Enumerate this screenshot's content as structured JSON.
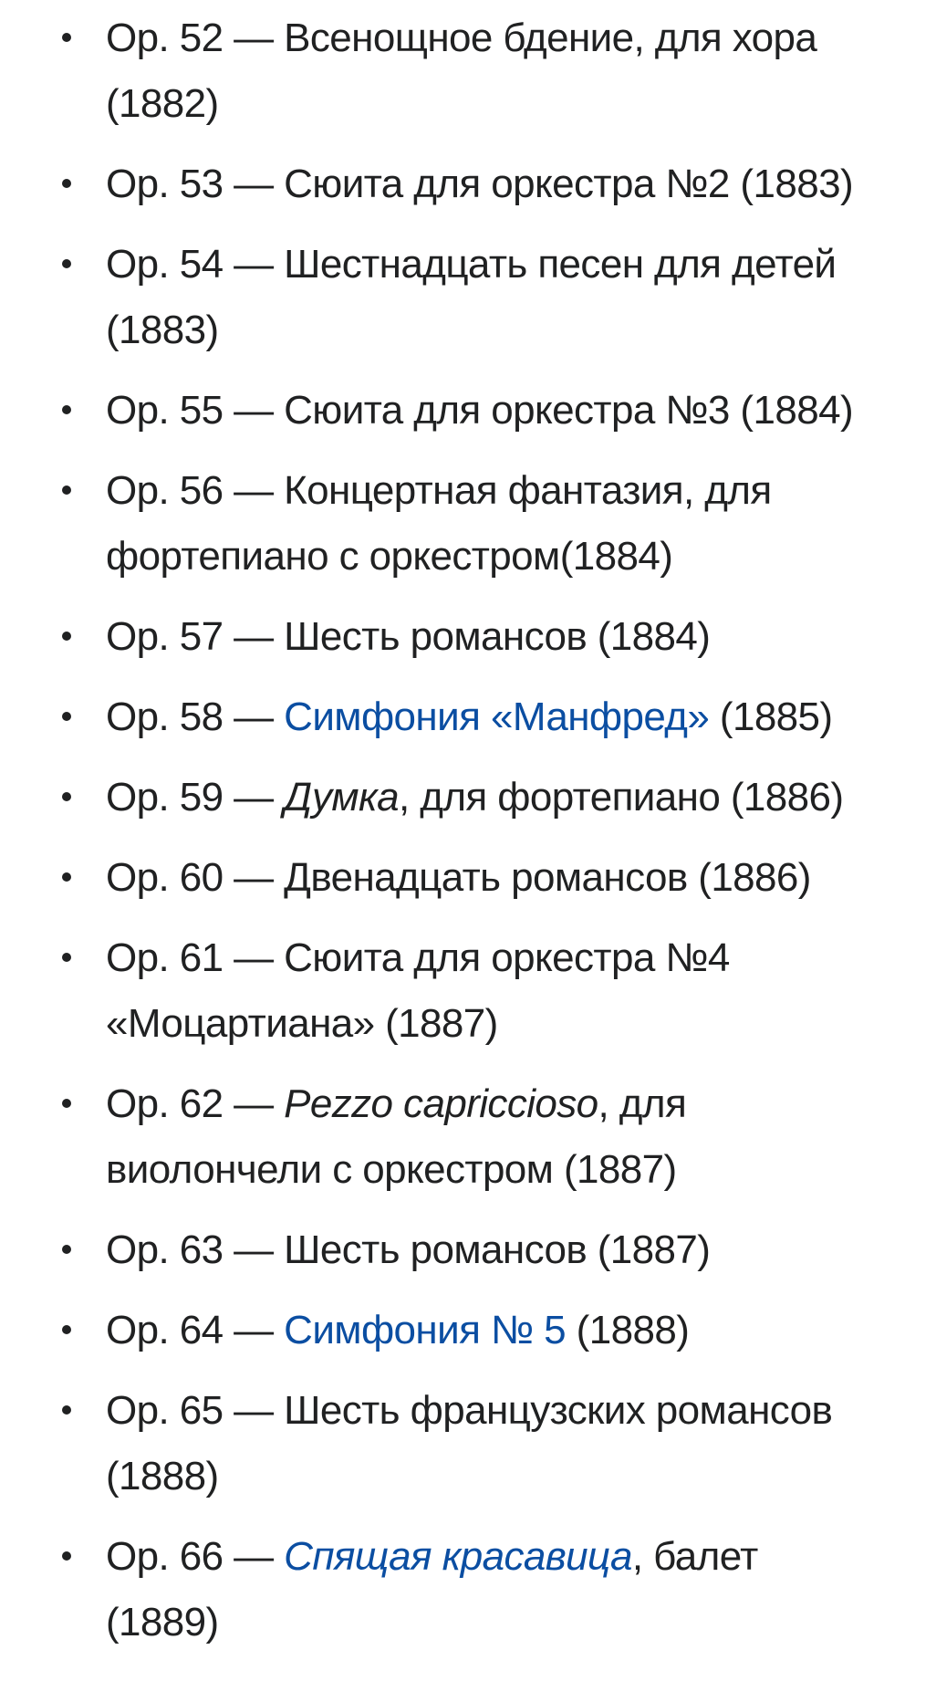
{
  "colors": {
    "text": "#202122",
    "link": "#0b4ea2"
  },
  "items": [
    {
      "lines": [
        [
          {
            "t": "Ор. 52 — Всенощное бдение, для хора"
          }
        ],
        [
          {
            "t": "(1882)"
          }
        ]
      ]
    },
    {
      "lines": [
        [
          {
            "t": "Ор. 53 — Сюита для оркестра №2 (1883)"
          }
        ]
      ]
    },
    {
      "lines": [
        [
          {
            "t": "Ор. 54 — Шестнадцать песен для детей"
          }
        ],
        [
          {
            "t": "(1883)"
          }
        ]
      ]
    },
    {
      "lines": [
        [
          {
            "t": "Ор. 55 — Сюита для оркестра №3 (1884)"
          }
        ]
      ]
    },
    {
      "lines": [
        [
          {
            "t": "Ор. 56 — Концертная фантазия, для"
          }
        ],
        [
          {
            "t": "фортепиано с оркестром(1884)"
          }
        ]
      ]
    },
    {
      "lines": [
        [
          {
            "t": "Ор. 57 — Шесть романсов (1884)"
          }
        ]
      ]
    },
    {
      "lines": [
        [
          {
            "t": "Ор. 58 — "
          },
          {
            "t": "Симфония «Манфред»",
            "link": true
          },
          {
            "t": " (1885)"
          }
        ]
      ]
    },
    {
      "lines": [
        [
          {
            "t": "Ор. 59 — "
          },
          {
            "t": "Думка",
            "italic": true
          },
          {
            "t": ", для фортепиано (1886)"
          }
        ]
      ]
    },
    {
      "lines": [
        [
          {
            "t": "Ор. 60 — Двенадцать романсов (1886)"
          }
        ]
      ]
    },
    {
      "lines": [
        [
          {
            "t": "Ор. 61 — Сюита для оркестра №4"
          }
        ],
        [
          {
            "t": "«Моцартиана» (1887)"
          }
        ]
      ]
    },
    {
      "lines": [
        [
          {
            "t": "Ор. 62 — "
          },
          {
            "t": "Pezzo capriccioso",
            "italic": true
          },
          {
            "t": ", для"
          }
        ],
        [
          {
            "t": "виолончели с оркестром (1887)"
          }
        ]
      ]
    },
    {
      "lines": [
        [
          {
            "t": "Ор. 63 — Шесть романсов (1887)"
          }
        ]
      ]
    },
    {
      "lines": [
        [
          {
            "t": "Ор. 64 — "
          },
          {
            "t": "Симфония № 5",
            "link": true
          },
          {
            "t": " (1888)"
          }
        ]
      ]
    },
    {
      "lines": [
        [
          {
            "t": "Ор. 65 — Шесть французских романсов"
          }
        ],
        [
          {
            "t": "(1888)"
          }
        ]
      ]
    },
    {
      "lines": [
        [
          {
            "t": "Ор. 66 — "
          },
          {
            "t": "Спящая красавица",
            "link": true,
            "italic": true
          },
          {
            "t": ", балет"
          }
        ],
        [
          {
            "t": "(1889)"
          }
        ]
      ]
    }
  ]
}
